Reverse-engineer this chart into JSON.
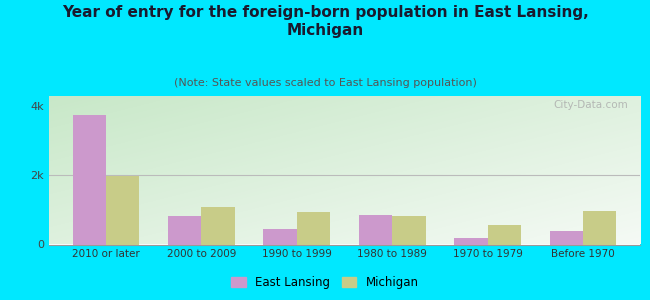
{
  "title": "Year of entry for the foreign-born population in East Lansing,\nMichigan",
  "subtitle": "(Note: State values scaled to East Lansing population)",
  "categories": [
    "2010 or later",
    "2000 to 2009",
    "1990 to 1999",
    "1980 to 1989",
    "1970 to 1979",
    "Before 1970"
  ],
  "east_lansing": [
    3750,
    820,
    460,
    860,
    200,
    400
  ],
  "michigan": [
    1970,
    1080,
    940,
    820,
    560,
    960
  ],
  "bar_color_el": "#cc99cc",
  "bar_color_mi": "#c8cc88",
  "background_outer": "#00e8ff",
  "ylim": [
    0,
    4300
  ],
  "yticks": [
    0,
    2000,
    4000
  ],
  "ytick_labels": [
    "0",
    "2k",
    "4k"
  ],
  "watermark": "City-Data.com",
  "legend_labels": [
    "East Lansing",
    "Michigan"
  ],
  "title_fontsize": 11,
  "subtitle_fontsize": 8,
  "bar_width": 0.35
}
